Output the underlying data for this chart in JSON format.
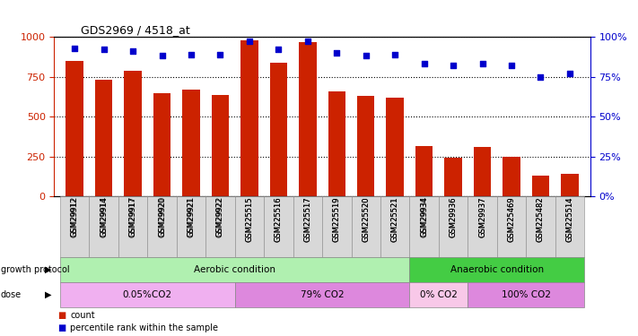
{
  "title": "GDS2969 / 4518_at",
  "samples": [
    "GSM29912",
    "GSM29914",
    "GSM29917",
    "GSM29920",
    "GSM29921",
    "GSM29922",
    "GSM225515",
    "GSM225516",
    "GSM225517",
    "GSM225519",
    "GSM225520",
    "GSM225521",
    "GSM29934",
    "GSM29936",
    "GSM29937",
    "GSM225469",
    "GSM225482",
    "GSM225514"
  ],
  "counts": [
    850,
    730,
    785,
    645,
    668,
    635,
    980,
    840,
    965,
    660,
    628,
    620,
    315,
    240,
    308,
    250,
    130,
    140
  ],
  "percentiles": [
    93,
    92,
    91,
    88,
    89,
    89,
    97,
    92,
    97,
    90,
    88,
    89,
    83,
    82,
    83,
    82,
    75,
    77
  ],
  "ylim_left": [
    0,
    1000
  ],
  "ylim_right": [
    0,
    100
  ],
  "yticks_left": [
    0,
    250,
    500,
    750,
    1000
  ],
  "yticks_right": [
    0,
    25,
    50,
    75,
    100
  ],
  "bar_color": "#cc2200",
  "dot_color": "#0000cc",
  "groups": {
    "growth_protocol": [
      {
        "label": "Aerobic condition",
        "start": 0,
        "end": 11,
        "color": "#b0f0b0"
      },
      {
        "label": "Anaerobic condition",
        "start": 12,
        "end": 17,
        "color": "#44cc44"
      }
    ],
    "dose": [
      {
        "label": "0.05%CO2",
        "start": 0,
        "end": 5,
        "color": "#f0b0f0"
      },
      {
        "label": "79% CO2",
        "start": 6,
        "end": 11,
        "color": "#dd88dd"
      },
      {
        "label": "0% CO2",
        "start": 12,
        "end": 13,
        "color": "#f8c8e8"
      },
      {
        "label": "100% CO2",
        "start": 14,
        "end": 17,
        "color": "#dd88dd"
      }
    ]
  },
  "legend": [
    {
      "label": "count",
      "color": "#cc2200"
    },
    {
      "label": "percentile rank within the sample",
      "color": "#0000cc"
    }
  ]
}
